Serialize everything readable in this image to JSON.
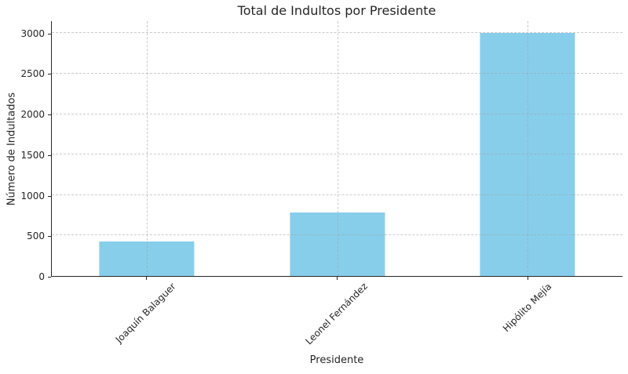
{
  "chart_data": {
    "type": "bar",
    "title": "Total de Indultos por Presidente",
    "xlabel": "Presidente",
    "ylabel": "Número de Indultados",
    "categories": [
      "Joaquín Balaguer",
      "Leonel Fernández",
      "Hipólito Mejía"
    ],
    "values": [
      430,
      790,
      3000
    ],
    "yticks": [
      0,
      500,
      1000,
      1500,
      2000,
      2500,
      3000
    ],
    "ylim": [
      0,
      3150
    ],
    "grid": "dashed-both-axes",
    "legend": "none",
    "colors": {
      "bar": "#87CEEB",
      "spine": "#262626",
      "text": "#262626",
      "grid_base": "#a0a0a0",
      "background": "#ffffff"
    }
  }
}
